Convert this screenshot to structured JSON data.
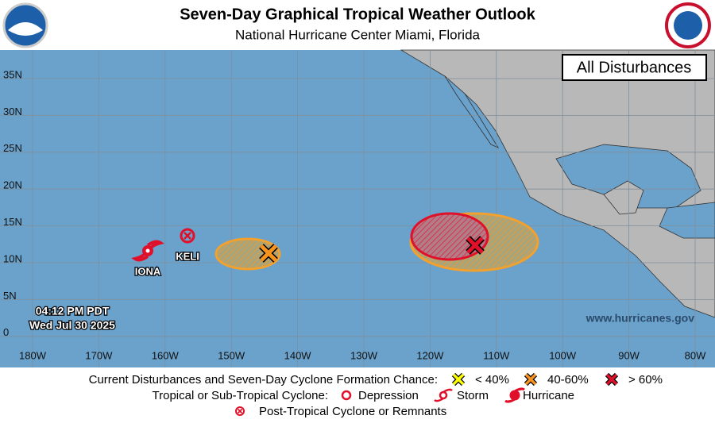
{
  "header": {
    "title": "Seven-Day Graphical Tropical Weather Outlook",
    "subtitle": "National Hurricane Center  Miami, Florida"
  },
  "map": {
    "panel_label": "All Disturbances",
    "lat_labels": [
      "35N",
      "30N",
      "25N",
      "20N",
      "15N",
      "10N",
      "5N",
      "0"
    ],
    "lon_labels": [
      "180W",
      "170W",
      "160W",
      "150W",
      "140W",
      "130W",
      "120W",
      "110W",
      "100W",
      "90W",
      "80W"
    ],
    "storms": [
      "IONA",
      "KELI"
    ],
    "time": "04:12 PM PDT",
    "date": "Wed Jul 30 2025",
    "website": "www.hurricanes.gov"
  },
  "legend": {
    "formation_label": "Current Disturbances and Seven-Day Cyclone Formation Chance:",
    "formation_items": [
      "< 40%",
      "40-60%",
      "> 60%"
    ],
    "cyclone_label": "Tropical or Sub-Tropical Cyclone:",
    "cyclone_items": [
      "Depression",
      "Storm",
      "Hurricane"
    ],
    "post_tropical": "Post-Tropical Cyclone or Remnants"
  }
}
